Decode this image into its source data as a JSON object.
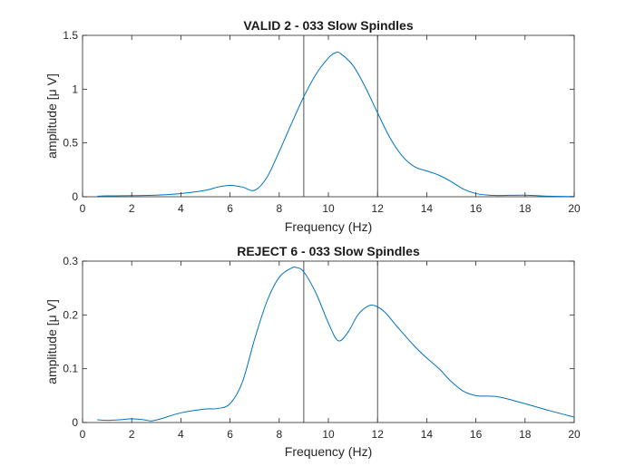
{
  "chart_data": [
    {
      "type": "line",
      "title": "VALID 2 - 033 Slow Spindles",
      "xlabel": "Frequency (Hz)",
      "ylabel": "amplitude [μ V]",
      "xlim": [
        0,
        20
      ],
      "ylim": [
        0,
        1.5
      ],
      "x_ticks": [
        "0",
        "2",
        "4",
        "6",
        "8",
        "10",
        "12",
        "14",
        "16",
        "18",
        "20"
      ],
      "y_ticks": [
        "0",
        "0.5",
        "1",
        "1.5"
      ],
      "grid": false,
      "legend": "none",
      "line_color": "#0072BD",
      "vertical_lines": [
        9,
        12
      ],
      "series": [
        {
          "x": [
            0.6,
            1,
            2,
            3,
            4,
            5,
            5.5,
            6,
            6.5,
            7,
            7.5,
            8,
            8.5,
            9,
            9.5,
            10,
            10.3,
            10.5,
            11,
            11.5,
            12,
            12.5,
            13,
            13.5,
            14,
            14.5,
            15,
            15.5,
            16,
            16.5,
            17,
            18,
            19,
            20
          ],
          "y": [
            0.005,
            0.008,
            0.01,
            0.015,
            0.03,
            0.06,
            0.09,
            0.105,
            0.09,
            0.06,
            0.18,
            0.42,
            0.68,
            0.93,
            1.14,
            1.29,
            1.34,
            1.33,
            1.22,
            1.02,
            0.78,
            0.55,
            0.38,
            0.28,
            0.24,
            0.2,
            0.14,
            0.07,
            0.03,
            0.015,
            0.012,
            0.015,
            0.005,
            0.002
          ]
        }
      ]
    },
    {
      "type": "line",
      "title": "REJECT 6 - 033 Slow Spindles",
      "xlabel": "Frequency (Hz)",
      "ylabel": "amplitude [μ V]",
      "xlim": [
        0,
        20
      ],
      "ylim": [
        0,
        0.3
      ],
      "x_ticks": [
        "0",
        "2",
        "4",
        "6",
        "8",
        "10",
        "12",
        "14",
        "16",
        "18",
        "20"
      ],
      "y_ticks": [
        "0",
        "0.1",
        "0.2",
        "0.3"
      ],
      "grid": false,
      "legend": "none",
      "line_color": "#0072BD",
      "vertical_lines": [
        9,
        12
      ],
      "series": [
        {
          "x": [
            0.6,
            1,
            1.5,
            2,
            2.5,
            2.8,
            3.2,
            4,
            5,
            5.5,
            6,
            6.5,
            7,
            7.5,
            8,
            8.5,
            8.7,
            9,
            9.5,
            10,
            10.4,
            10.8,
            11.2,
            11.6,
            11.9,
            12.3,
            12.8,
            13.5,
            14,
            14.5,
            15,
            15.5,
            16,
            16.5,
            17,
            18,
            19,
            20
          ],
          "y": [
            0.005,
            0.004,
            0.005,
            0.007,
            0.005,
            0.003,
            0.007,
            0.018,
            0.025,
            0.026,
            0.035,
            0.075,
            0.155,
            0.225,
            0.27,
            0.287,
            0.288,
            0.28,
            0.24,
            0.185,
            0.152,
            0.168,
            0.2,
            0.216,
            0.217,
            0.205,
            0.178,
            0.142,
            0.12,
            0.1,
            0.076,
            0.058,
            0.05,
            0.049,
            0.047,
            0.035,
            0.022,
            0.01
          ]
        }
      ]
    }
  ]
}
